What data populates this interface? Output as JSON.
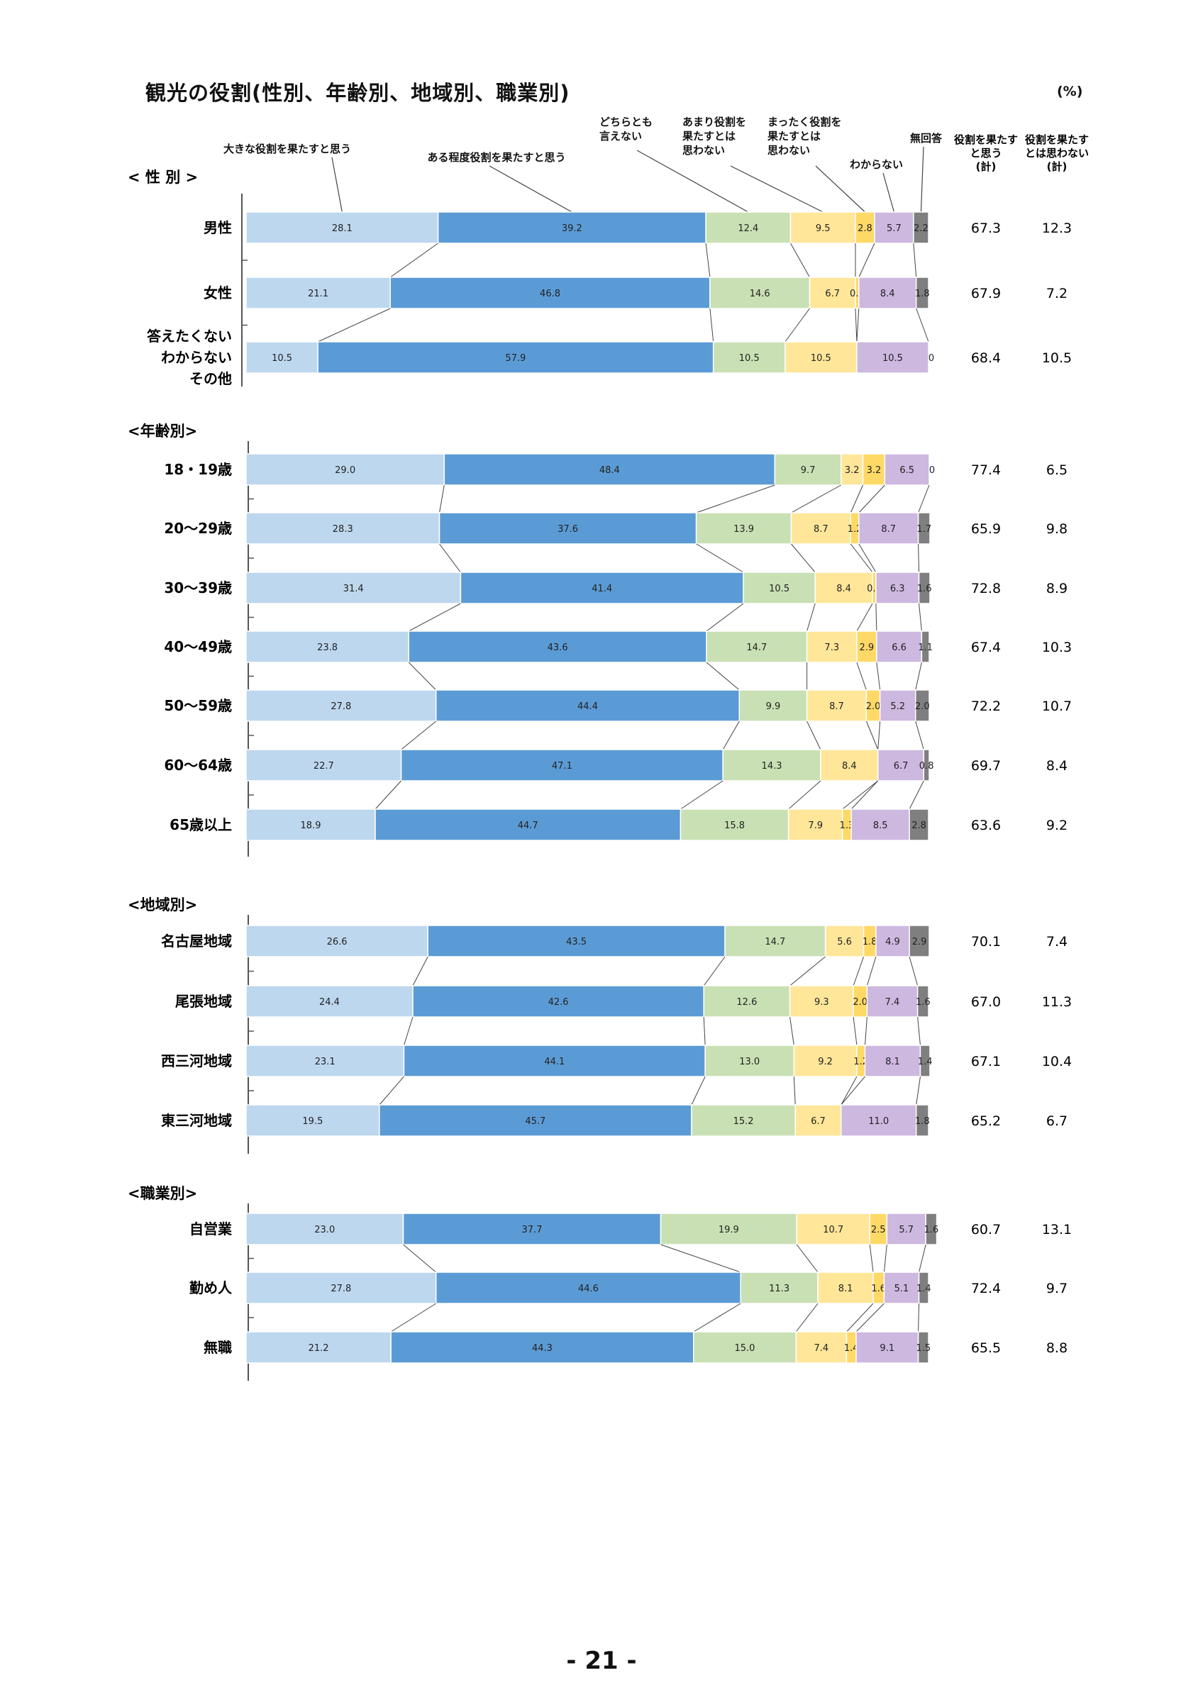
{
  "page": {
    "title": "観光の役割(性別、年齢別、地域別、職業別)",
    "unit": "(%)",
    "page_number": "- 21 -"
  },
  "chart_data": {
    "type": "bar",
    "stacked": true,
    "orientation": "horizontal",
    "xlim": [
      0,
      100
    ],
    "legend": [
      {
        "label": "大きな役割を果たすと思う",
        "color": "#bdd7ee"
      },
      {
        "label": "ある程度役割を果たすと思う",
        "color": "#5b9bd5"
      },
      {
        "label": "どちらとも言えない",
        "color": "#c9e0b4"
      },
      {
        "label": "あまり役割を果たすとは思わない",
        "color": "#ffe699"
      },
      {
        "label": "まったく役割を果たすとは思わない",
        "color": "#ffd966"
      },
      {
        "label": "わからない",
        "color": "#cdb8e0"
      },
      {
        "label": "無回答",
        "color": "#7f7f7f"
      }
    ],
    "legend_lines": [
      [
        "大きな役割を果たすと思う"
      ],
      [
        "ある程度役割を果たすと思う"
      ],
      [
        "どちらとも",
        "言えない"
      ],
      [
        "あまり役割を",
        "果たすとは",
        "思わない"
      ],
      [
        "まったく役割を",
        "果たすとは",
        "思わない"
      ],
      [
        "わからない"
      ],
      [
        "無回答"
      ]
    ],
    "summary_headers": [
      [
        "役割を果たす",
        "と思う",
        "(計)"
      ],
      [
        "役割を果たす",
        "とは思わない",
        "(計)"
      ]
    ],
    "groups": [
      {
        "label": "< 性 別 >",
        "rows": [
          {
            "label": [
              "男性"
            ],
            "values": [
              28.1,
              39.2,
              12.4,
              9.5,
              2.8,
              5.7,
              2.2
            ],
            "agree": "67.3",
            "disagree": "12.3"
          },
          {
            "label": [
              "女性"
            ],
            "values": [
              21.1,
              46.8,
              14.6,
              6.7,
              0.5,
              8.4,
              1.8
            ],
            "agree": "67.9",
            "disagree": "7.2"
          },
          {
            "label": [
              "答えたくない",
              "わからない",
              "その他"
            ],
            "values": [
              10.5,
              57.9,
              10.5,
              10.5,
              0,
              10.5,
              0
            ],
            "agree": "68.4",
            "disagree": "10.5"
          }
        ]
      },
      {
        "label": "<年齢別>",
        "rows": [
          {
            "label": [
              "18・19歳"
            ],
            "values": [
              29.0,
              48.4,
              9.7,
              3.2,
              3.2,
              6.5,
              0
            ],
            "agree": "77.4",
            "disagree": "6.5"
          },
          {
            "label": [
              "20～29歳"
            ],
            "values": [
              28.3,
              37.6,
              13.9,
              8.7,
              1.2,
              8.7,
              1.7
            ],
            "agree": "65.9",
            "disagree": "9.8"
          },
          {
            "label": [
              "30～39歳"
            ],
            "values": [
              31.4,
              41.4,
              10.5,
              8.4,
              0.5,
              6.3,
              1.6
            ],
            "agree": "72.8",
            "disagree": "8.9"
          },
          {
            "label": [
              "40～49歳"
            ],
            "values": [
              23.8,
              43.6,
              14.7,
              7.3,
              2.9,
              6.6,
              1.1
            ],
            "agree": "67.4",
            "disagree": "10.3"
          },
          {
            "label": [
              "50～59歳"
            ],
            "values": [
              27.8,
              44.4,
              9.9,
              8.7,
              2.0,
              5.2,
              2.0
            ],
            "agree": "72.2",
            "disagree": "10.7"
          },
          {
            "label": [
              "60～64歳"
            ],
            "values": [
              22.7,
              47.1,
              14.3,
              8.4,
              0,
              6.7,
              0.8
            ],
            "agree": "69.7",
            "disagree": "8.4"
          },
          {
            "label": [
              "65歳以上"
            ],
            "values": [
              18.9,
              44.7,
              15.8,
              7.9,
              1.3,
              8.5,
              2.8
            ],
            "agree": "63.6",
            "disagree": "9.2"
          }
        ]
      },
      {
        "label": "<地域別>",
        "rows": [
          {
            "label": [
              "名古屋地域"
            ],
            "values": [
              26.6,
              43.5,
              14.7,
              5.6,
              1.8,
              4.9,
              2.9
            ],
            "agree": "70.1",
            "disagree": "7.4"
          },
          {
            "label": [
              "尾張地域"
            ],
            "values": [
              24.4,
              42.6,
              12.6,
              9.3,
              2.0,
              7.4,
              1.6
            ],
            "agree": "67.0",
            "disagree": "11.3"
          },
          {
            "label": [
              "西三河地域"
            ],
            "values": [
              23.1,
              44.1,
              13.0,
              9.2,
              1.2,
              8.1,
              1.4
            ],
            "agree": "67.1",
            "disagree": "10.4"
          },
          {
            "label": [
              "東三河地域"
            ],
            "values": [
              19.5,
              45.7,
              15.2,
              6.7,
              0,
              11.0,
              1.8
            ],
            "agree": "65.2",
            "disagree": "6.7"
          }
        ]
      },
      {
        "label": "<職業別>",
        "rows": [
          {
            "label": [
              "自営業"
            ],
            "values": [
              23.0,
              37.7,
              19.9,
              10.7,
              2.5,
              5.7,
              1.6
            ],
            "agree": "60.7",
            "disagree": "13.1"
          },
          {
            "label": [
              "勤め人"
            ],
            "values": [
              27.8,
              44.6,
              11.3,
              8.1,
              1.6,
              5.1,
              1.4
            ],
            "agree": "72.4",
            "disagree": "9.7"
          },
          {
            "label": [
              "無職"
            ],
            "values": [
              21.2,
              44.3,
              15.0,
              7.4,
              1.4,
              9.1,
              1.5
            ],
            "agree": "65.5",
            "disagree": "8.8"
          }
        ]
      }
    ]
  }
}
